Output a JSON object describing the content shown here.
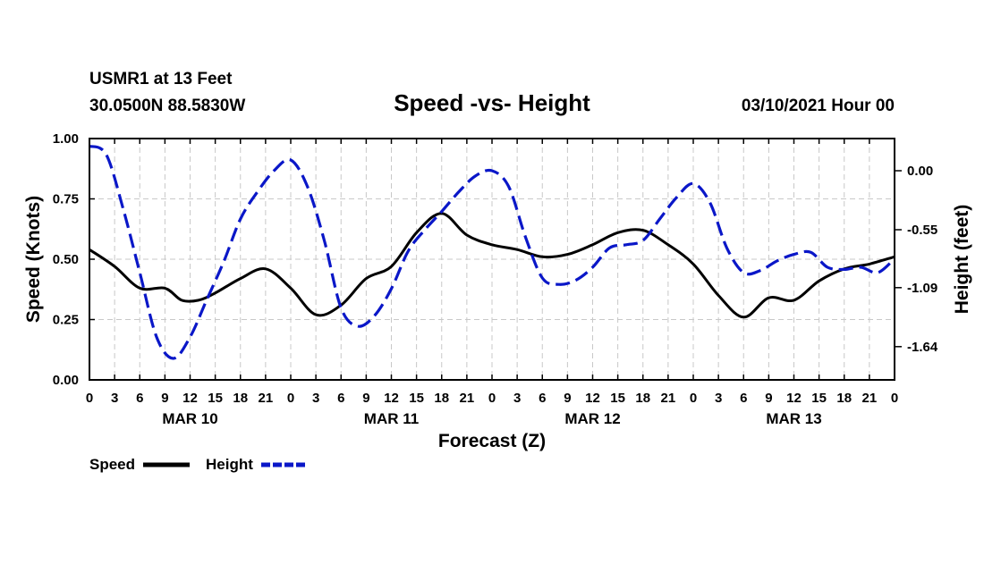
{
  "header": {
    "station": "USMR1 at 13 Feet",
    "location": "30.0500N 88.5830W",
    "title": "Speed -vs- Height",
    "datetime": "03/10/2021 Hour 00"
  },
  "chart_data": {
    "type": "line",
    "title": "Speed -vs- Height",
    "xlabel": "Forecast (Z)",
    "ylabel_left": "Speed (Knots)",
    "ylabel_right": "Height (feet)",
    "x_unit": "forecast hour",
    "xlim": [
      0,
      96
    ],
    "ylim_left": [
      0,
      1.0
    ],
    "ylim_right": [
      -1.95,
      0.3
    ],
    "x_tick_labels": [
      "0",
      "3",
      "6",
      "9",
      "12",
      "15",
      "18",
      "21",
      "0",
      "3",
      "6",
      "9",
      "12",
      "15",
      "18",
      "21",
      "0",
      "3",
      "6",
      "9",
      "12",
      "15",
      "18",
      "21",
      "0",
      "3",
      "6",
      "9",
      "12",
      "15",
      "18",
      "21",
      "0"
    ],
    "day_labels": [
      {
        "label": "MAR 10",
        "hour": 12
      },
      {
        "label": "MAR 11",
        "hour": 36
      },
      {
        "label": "MAR 12",
        "hour": 60
      },
      {
        "label": "MAR 13",
        "hour": 84
      }
    ],
    "y_left_ticks": [
      "0.00",
      "0.25",
      "0.50",
      "0.75",
      "1.00"
    ],
    "y_right_ticks": [
      "0.00",
      "-0.55",
      "-1.09",
      "-1.64"
    ],
    "grid": true,
    "series": [
      {
        "name": "Speed",
        "axis": "left",
        "color": "#000000",
        "dash": "solid",
        "x": [
          0,
          3,
          6,
          9,
          11,
          13,
          15,
          18,
          21,
          24,
          27,
          30,
          33,
          36,
          39,
          42,
          45,
          48,
          51,
          54,
          57,
          60,
          63,
          66,
          69,
          72,
          75,
          78,
          81,
          84,
          87,
          90,
          93,
          96
        ],
        "y": [
          0.54,
          0.47,
          0.38,
          0.38,
          0.33,
          0.33,
          0.36,
          0.42,
          0.46,
          0.38,
          0.27,
          0.31,
          0.42,
          0.47,
          0.61,
          0.69,
          0.6,
          0.56,
          0.54,
          0.51,
          0.52,
          0.56,
          0.61,
          0.62,
          0.56,
          0.48,
          0.35,
          0.26,
          0.34,
          0.33,
          0.41,
          0.46,
          0.48,
          0.51
        ]
      },
      {
        "name": "Height",
        "axis": "right",
        "color": "#0a17c8",
        "dash": "dashed",
        "x": [
          0,
          2,
          4,
          6,
          8,
          10,
          12,
          14,
          16,
          18,
          20,
          22,
          24,
          26,
          28,
          30,
          32,
          34,
          36,
          38,
          40,
          42,
          44,
          46,
          48,
          50,
          52,
          54,
          56,
          58,
          60,
          62,
          64,
          66,
          68,
          70,
          72,
          74,
          76,
          78,
          80,
          82,
          84,
          86,
          88,
          90,
          92,
          94,
          96
        ],
        "y": [
          0.23,
          0.15,
          -0.35,
          -0.95,
          -1.55,
          -1.75,
          -1.55,
          -1.2,
          -0.85,
          -0.45,
          -0.2,
          0.0,
          0.1,
          -0.15,
          -0.65,
          -1.28,
          -1.45,
          -1.35,
          -1.1,
          -0.75,
          -0.55,
          -0.38,
          -0.2,
          -0.05,
          0.0,
          -0.15,
          -0.62,
          -1.0,
          -1.06,
          -1.02,
          -0.9,
          -0.72,
          -0.69,
          -0.65,
          -0.45,
          -0.25,
          -0.12,
          -0.3,
          -0.72,
          -0.95,
          -0.93,
          -0.84,
          -0.78,
          -0.76,
          -0.9,
          -0.92,
          -0.9,
          -0.95,
          -0.82
        ]
      }
    ],
    "legend": [
      {
        "label": "Speed",
        "color": "#000000",
        "dash": "solid"
      },
      {
        "label": "Height",
        "color": "#0a17c8",
        "dash": "dashed"
      }
    ]
  }
}
